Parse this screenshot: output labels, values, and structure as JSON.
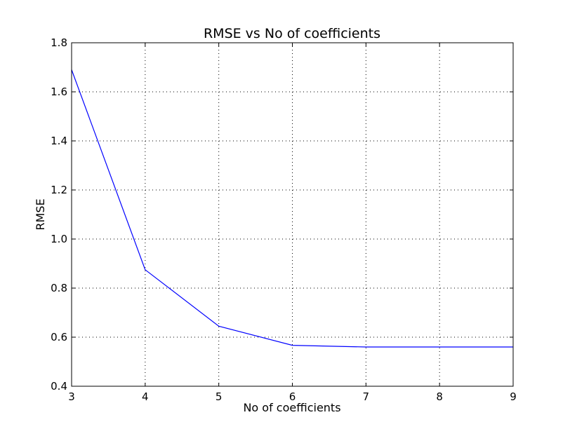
{
  "chart_data": {
    "type": "line",
    "title": "RMSE vs No of coefficients",
    "xlabel": "No of coefficients",
    "ylabel": "RMSE",
    "xlim": [
      3,
      9
    ],
    "ylim": [
      0.4,
      1.8
    ],
    "grid": true,
    "x_ticks": [
      "3",
      "4",
      "5",
      "6",
      "7",
      "8",
      "9"
    ],
    "y_ticks": [
      "0.4",
      "0.6",
      "0.8",
      "1.0",
      "1.2",
      "1.4",
      "1.6",
      "1.8"
    ],
    "series": [
      {
        "color": "#0000ff",
        "x": [
          3,
          4,
          5,
          6,
          7,
          8,
          9
        ],
        "values": [
          1.69,
          0.875,
          0.645,
          0.567,
          0.56,
          0.56,
          0.56
        ]
      }
    ]
  }
}
